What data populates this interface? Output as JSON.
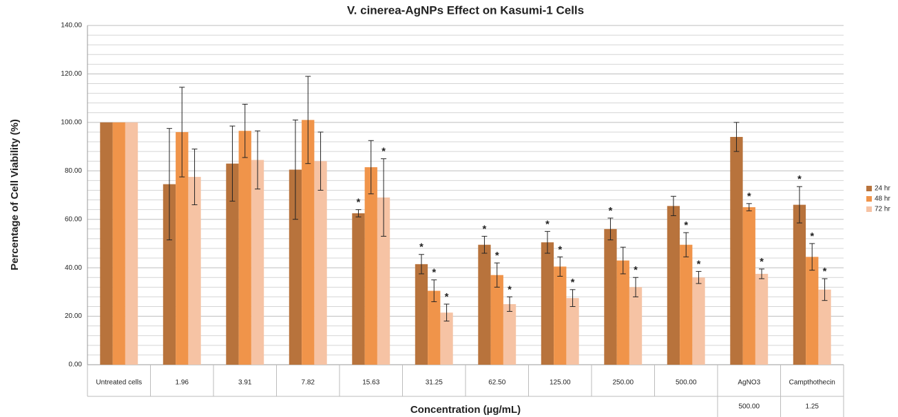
{
  "chart_data": {
    "type": "bar",
    "title": "V. cinerea-AgNPs Effect on Kasumi-1 Cells",
    "y_label": "Percentage of Cell Viability (%)",
    "x_label": "Concentration (µg/mL)",
    "categories": [
      "Untreated cells",
      "1.96",
      "3.91",
      "7.82",
      "15.63",
      "31.25",
      "62.50",
      "125.00",
      "250.00",
      "500.00",
      "AgNO3",
      "Campthothecin"
    ],
    "category_sublabels": [
      null,
      null,
      null,
      null,
      null,
      null,
      null,
      null,
      null,
      null,
      "500.00",
      "1.25"
    ],
    "ylim": [
      0,
      140
    ],
    "yticks": [
      {
        "value": 0,
        "label": "0.00"
      },
      {
        "value": 20,
        "label": "20.00"
      },
      {
        "value": 40,
        "label": "40.00"
      },
      {
        "value": 60,
        "label": "60.00"
      },
      {
        "value": 80,
        "label": "80.00"
      },
      {
        "value": 100,
        "label": "100.00"
      },
      {
        "value": 120,
        "label": "120.00"
      },
      {
        "value": 140,
        "label": "140.00"
      }
    ],
    "grid": true,
    "legend": "right",
    "series": [
      {
        "name": "24 hr",
        "color": "#b8733c",
        "values": [
          100,
          74.5,
          83,
          80.5,
          62.5,
          41.5,
          49.5,
          50.5,
          56,
          65.5,
          94,
          66
        ],
        "errors": [
          0,
          23,
          15.5,
          20.5,
          1.5,
          4,
          3.5,
          4.5,
          4.5,
          4,
          6,
          7.5
        ],
        "significance": [
          null,
          null,
          null,
          null,
          "*",
          "*",
          "*",
          "*",
          "*",
          null,
          null,
          "*"
        ]
      },
      {
        "name": "48 hr",
        "color": "#f0944a",
        "values": [
          100,
          96,
          96.5,
          101,
          81.5,
          30.5,
          37,
          40.5,
          43,
          49.5,
          65,
          44.5
        ],
        "errors": [
          0,
          18.5,
          11,
          18,
          11,
          4.5,
          5,
          4,
          5.5,
          5,
          1.5,
          5.5
        ],
        "significance": [
          null,
          null,
          null,
          null,
          null,
          "*",
          "*",
          "*",
          null,
          "*",
          "*",
          "*"
        ]
      },
      {
        "name": "72 hr",
        "color": "#f6c3a4",
        "values": [
          100,
          77.5,
          84.5,
          84,
          69,
          21.5,
          25,
          27.5,
          32,
          36,
          37.5,
          31
        ],
        "errors": [
          0,
          11.5,
          12,
          12,
          16,
          3.5,
          3,
          3.5,
          4,
          2.5,
          2,
          4.5
        ],
        "significance": [
          null,
          null,
          null,
          null,
          "*",
          "*",
          "*",
          "*",
          "*",
          "*",
          "*",
          "*"
        ]
      }
    ]
  }
}
